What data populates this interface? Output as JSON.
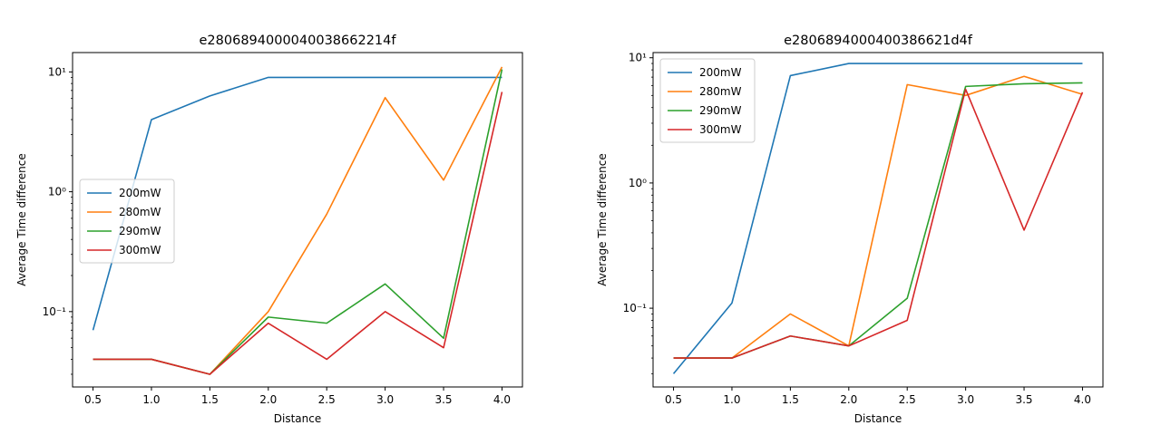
{
  "chart_data": [
    {
      "type": "line",
      "title": "e2806894000040038662214f",
      "xlabel": "Distance",
      "ylabel": "Average Time difference",
      "yscale": "log",
      "xlim": [
        0.325,
        4.175
      ],
      "ylim": [
        0.0235,
        14.5
      ],
      "xticks": [
        0.5,
        1.0,
        1.5,
        2.0,
        2.5,
        3.0,
        3.5,
        4.0
      ],
      "xtick_labels": [
        "0.5",
        "1.0",
        "1.5",
        "2.0",
        "2.5",
        "3.0",
        "3.5",
        "4.0"
      ],
      "yticks": [
        0.1,
        1,
        10
      ],
      "ytick_labels": [
        "10⁻¹",
        "10⁰",
        "10¹"
      ],
      "legend_position": "center-left",
      "grid": false,
      "x": [
        0.5,
        1.0,
        1.5,
        2.0,
        2.5,
        3.0,
        3.5,
        4.0
      ],
      "series": [
        {
          "name": "200mW",
          "color": "#1f77b4",
          "values": [
            0.07,
            4.0,
            6.3,
            9.0,
            9.0,
            9.0,
            9.0,
            9.0
          ]
        },
        {
          "name": "280mW",
          "color": "#ff7f0e",
          "values": [
            0.04,
            0.04,
            0.03,
            0.1,
            0.65,
            6.1,
            1.25,
            11.0
          ]
        },
        {
          "name": "290mW",
          "color": "#2ca02c",
          "values": [
            0.04,
            0.04,
            0.03,
            0.09,
            0.08,
            0.17,
            0.06,
            10.5
          ]
        },
        {
          "name": "300mW",
          "color": "#d62728",
          "values": [
            0.04,
            0.04,
            0.03,
            0.08,
            0.04,
            0.1,
            0.05,
            6.8
          ]
        }
      ]
    },
    {
      "type": "line",
      "title": "e2806894000400386621d4f",
      "xlabel": "Distance",
      "ylabel": "Average Time difference",
      "yscale": "log",
      "xlim": [
        0.325,
        4.175
      ],
      "ylim": [
        0.0235,
        11.0
      ],
      "xticks": [
        0.5,
        1.0,
        1.5,
        2.0,
        2.5,
        3.0,
        3.5,
        4.0
      ],
      "xtick_labels": [
        "0.5",
        "1.0",
        "1.5",
        "2.0",
        "2.5",
        "3.0",
        "3.5",
        "4.0"
      ],
      "yticks": [
        0.1,
        1,
        10
      ],
      "ytick_labels": [
        "10⁻¹",
        "10⁰",
        "10¹"
      ],
      "legend_position": "upper-left",
      "grid": false,
      "x": [
        0.5,
        1.0,
        1.5,
        2.0,
        2.5,
        3.0,
        3.5,
        4.0
      ],
      "series": [
        {
          "name": "200mW",
          "color": "#1f77b4",
          "values": [
            0.03,
            0.11,
            7.2,
            9.0,
            9.0,
            9.0,
            9.0,
            9.0
          ]
        },
        {
          "name": "280mW",
          "color": "#ff7f0e",
          "values": [
            0.04,
            0.04,
            0.09,
            0.05,
            6.1,
            5.0,
            7.1,
            5.1
          ]
        },
        {
          "name": "290mW",
          "color": "#2ca02c",
          "values": [
            0.04,
            0.04,
            0.06,
            0.05,
            0.12,
            5.9,
            6.2,
            6.3
          ]
        },
        {
          "name": "300mW",
          "color": "#d62728",
          "values": [
            0.04,
            0.04,
            0.06,
            0.05,
            0.08,
            5.6,
            0.42,
            5.3
          ]
        }
      ]
    }
  ]
}
